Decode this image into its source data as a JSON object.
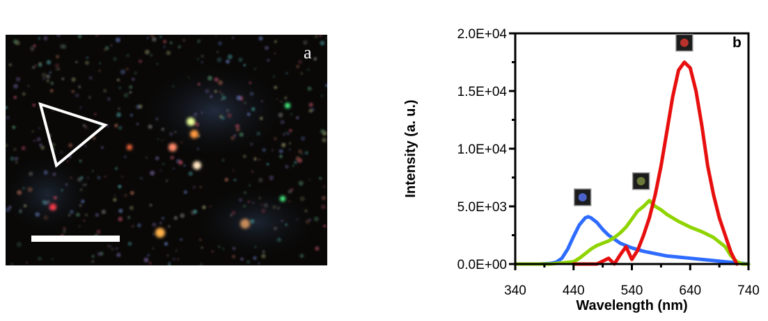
{
  "panel_a": {
    "label": "a",
    "marker": "triangle-outline",
    "scale_bar": "white-bar"
  },
  "chart_data": {
    "type": "line",
    "panel_label": "b",
    "title": "",
    "xlabel": "Wavelength (nm)",
    "ylabel": "Intensity (a. u.)",
    "xlim": [
      340,
      740
    ],
    "ylim": [
      0,
      20000
    ],
    "xticks": [
      340,
      440,
      540,
      640,
      740
    ],
    "yticks": [
      0,
      5000,
      10000,
      15000,
      20000
    ],
    "ytick_labels": [
      "0.0E+00",
      "5.0E+03",
      "1.0E+04",
      "1.5E+04",
      "2.0E+04"
    ],
    "series": [
      {
        "color": "#2e6bff",
        "marker_color": "#4a62c9",
        "x": [
          380,
          400,
          410,
          420,
          430,
          440,
          450,
          460,
          465,
          470,
          480,
          490,
          500,
          520,
          540,
          560,
          580,
          600,
          620,
          640,
          660,
          680,
          700,
          720,
          740
        ],
        "y": [
          0,
          50,
          150,
          500,
          1300,
          2400,
          3400,
          4000,
          4100,
          4000,
          3600,
          3000,
          2500,
          1800,
          1400,
          1100,
          900,
          700,
          600,
          500,
          400,
          300,
          200,
          100,
          0
        ]
      },
      {
        "color": "#8fd400",
        "marker_color": "#6b7a3a",
        "x": [
          340,
          400,
          420,
          440,
          450,
          460,
          470,
          480,
          490,
          500,
          510,
          520,
          530,
          540,
          550,
          560,
          570,
          580,
          590,
          600,
          620,
          640,
          660,
          680,
          700,
          710,
          720,
          730,
          740
        ],
        "y": [
          0,
          0,
          100,
          200,
          500,
          900,
          1300,
          1600,
          1800,
          2000,
          2300,
          2700,
          3200,
          3900,
          4600,
          5000,
          5500,
          5000,
          4700,
          4300,
          3700,
          3200,
          2800,
          2300,
          1500,
          700,
          200,
          0,
          0
        ]
      },
      {
        "color": "#e80f0f",
        "marker_color": "#b8322c",
        "x": [
          440,
          480,
          500,
          510,
          520,
          530,
          540,
          550,
          560,
          570,
          580,
          590,
          600,
          610,
          620,
          630,
          640,
          650,
          660,
          670,
          680,
          690,
          700,
          710,
          720
        ],
        "y": [
          0,
          0,
          500,
          0,
          800,
          1500,
          400,
          1200,
          2500,
          4000,
          6000,
          8500,
          11500,
          14500,
          16800,
          17500,
          17000,
          15000,
          12000,
          8500,
          6000,
          4000,
          2500,
          1000,
          0
        ]
      }
    ]
  }
}
